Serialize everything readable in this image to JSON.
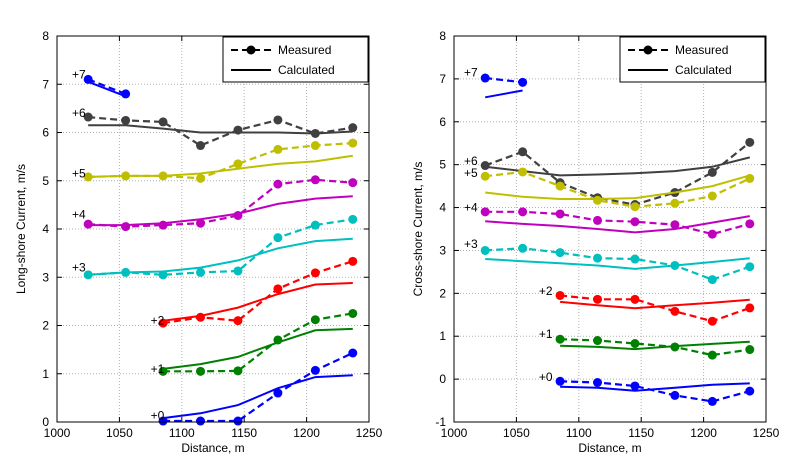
{
  "legend": {
    "measured": "Measured",
    "calculated": "Calculated",
    "placement": "top-right"
  },
  "colors": {
    "+0": "#0000ff",
    "+1": "#008000",
    "+2": "#ff0000",
    "+3": "#00bfbf",
    "+4": "#bf00bf",
    "+5": "#bfbf00",
    "+6": "#404040",
    "+7": "#0000ff"
  },
  "chart_data": [
    {
      "type": "line",
      "xlabel": "Distance, m",
      "ylabel": "Long-shore Current, m/s",
      "xlim": [
        1000,
        1250
      ],
      "ylim": [
        0,
        8
      ],
      "xticks": [
        1000,
        1050,
        1100,
        1150,
        1200,
        1250
      ],
      "yticks": [
        0,
        1,
        2,
        3,
        4,
        5,
        6,
        7,
        8
      ],
      "grid": true,
      "series": [
        {
          "name": "+7",
          "label_at": [
            1012,
            7.2
          ],
          "measured": [
            [
              1025,
              7.1
            ],
            [
              1055,
              6.8
            ]
          ],
          "calculated": [
            [
              1025,
              7.05
            ],
            [
              1055,
              6.75
            ]
          ]
        },
        {
          "name": "+6",
          "label_at": [
            1012,
            6.4
          ],
          "measured": [
            [
              1025,
              6.32
            ],
            [
              1055,
              6.25
            ],
            [
              1085,
              6.22
            ],
            [
              1115,
              5.73
            ],
            [
              1145,
              6.05
            ],
            [
              1177,
              6.26
            ],
            [
              1207,
              5.98
            ],
            [
              1237,
              6.1
            ]
          ],
          "calculated": [
            [
              1025,
              6.15
            ],
            [
              1055,
              6.15
            ],
            [
              1085,
              6.08
            ],
            [
              1115,
              6.0
            ],
            [
              1145,
              6.0
            ],
            [
              1177,
              6.0
            ],
            [
              1207,
              5.98
            ],
            [
              1237,
              6.02
            ]
          ]
        },
        {
          "name": "+5",
          "label_at": [
            1012,
            5.15
          ],
          "measured": [
            [
              1025,
              5.08
            ],
            [
              1055,
              5.1
            ],
            [
              1085,
              5.1
            ],
            [
              1115,
              5.05
            ],
            [
              1145,
              5.35
            ],
            [
              1177,
              5.65
            ],
            [
              1207,
              5.73
            ],
            [
              1237,
              5.78
            ]
          ],
          "calculated": [
            [
              1025,
              5.08
            ],
            [
              1055,
              5.1
            ],
            [
              1085,
              5.1
            ],
            [
              1115,
              5.15
            ],
            [
              1145,
              5.25
            ],
            [
              1177,
              5.35
            ],
            [
              1207,
              5.4
            ],
            [
              1237,
              5.52
            ]
          ]
        },
        {
          "name": "+4",
          "label_at": [
            1012,
            4.3
          ],
          "measured": [
            [
              1025,
              4.1
            ],
            [
              1055,
              4.05
            ],
            [
              1085,
              4.08
            ],
            [
              1115,
              4.12
            ],
            [
              1145,
              4.28
            ],
            [
              1177,
              4.93
            ],
            [
              1207,
              5.02
            ],
            [
              1237,
              4.96
            ]
          ],
          "calculated": [
            [
              1025,
              4.08
            ],
            [
              1055,
              4.08
            ],
            [
              1085,
              4.12
            ],
            [
              1115,
              4.2
            ],
            [
              1145,
              4.32
            ],
            [
              1177,
              4.52
            ],
            [
              1207,
              4.63
            ],
            [
              1237,
              4.68
            ]
          ]
        },
        {
          "name": "+3",
          "label_at": [
            1012,
            3.2
          ],
          "measured": [
            [
              1025,
              3.05
            ],
            [
              1055,
              3.1
            ],
            [
              1085,
              3.05
            ],
            [
              1115,
              3.1
            ],
            [
              1145,
              3.13
            ],
            [
              1177,
              3.82
            ],
            [
              1207,
              4.08
            ],
            [
              1237,
              4.2
            ]
          ],
          "calculated": [
            [
              1025,
              3.05
            ],
            [
              1055,
              3.1
            ],
            [
              1085,
              3.12
            ],
            [
              1115,
              3.2
            ],
            [
              1145,
              3.35
            ],
            [
              1177,
              3.6
            ],
            [
              1207,
              3.75
            ],
            [
              1237,
              3.8
            ]
          ]
        },
        {
          "name": "+2",
          "label_at": [
            1075,
            2.1
          ],
          "measured": [
            [
              1085,
              2.05
            ],
            [
              1115,
              2.17
            ],
            [
              1145,
              2.1
            ],
            [
              1177,
              2.76
            ],
            [
              1207,
              3.09
            ],
            [
              1237,
              3.33
            ]
          ],
          "calculated": [
            [
              1085,
              2.1
            ],
            [
              1115,
              2.2
            ],
            [
              1145,
              2.37
            ],
            [
              1177,
              2.65
            ],
            [
              1207,
              2.85
            ],
            [
              1237,
              2.88
            ]
          ]
        },
        {
          "name": "+1",
          "label_at": [
            1075,
            1.1
          ],
          "measured": [
            [
              1085,
              1.05
            ],
            [
              1115,
              1.05
            ],
            [
              1145,
              1.06
            ],
            [
              1177,
              1.7
            ],
            [
              1207,
              2.12
            ],
            [
              1237,
              2.25
            ]
          ],
          "calculated": [
            [
              1085,
              1.1
            ],
            [
              1115,
              1.2
            ],
            [
              1145,
              1.35
            ],
            [
              1177,
              1.65
            ],
            [
              1207,
              1.9
            ],
            [
              1237,
              1.93
            ]
          ]
        },
        {
          "name": "+0",
          "label_at": [
            1075,
            0.13
          ],
          "measured": [
            [
              1085,
              0.02
            ],
            [
              1115,
              0.02
            ],
            [
              1145,
              0.02
            ],
            [
              1177,
              0.6
            ],
            [
              1207,
              1.07
            ],
            [
              1237,
              1.43
            ]
          ],
          "calculated": [
            [
              1085,
              0.08
            ],
            [
              1115,
              0.18
            ],
            [
              1145,
              0.35
            ],
            [
              1177,
              0.7
            ],
            [
              1207,
              0.93
            ],
            [
              1237,
              0.97
            ]
          ]
        }
      ]
    },
    {
      "type": "line",
      "xlabel": "Distance, m",
      "ylabel": "Cross-shore Current, m/s",
      "xlim": [
        1000,
        1250
      ],
      "ylim": [
        -1,
        8
      ],
      "xticks": [
        1000,
        1050,
        1100,
        1150,
        1200,
        1250
      ],
      "yticks": [
        -1,
        0,
        1,
        2,
        3,
        4,
        5,
        6,
        7,
        8
      ],
      "grid": true,
      "series": [
        {
          "name": "+7",
          "label_at": [
            1008,
            7.15
          ],
          "measured": [
            [
              1025,
              7.02
            ],
            [
              1055,
              6.92
            ]
          ],
          "calculated": [
            [
              1025,
              6.57
            ],
            [
              1055,
              6.73
            ]
          ]
        },
        {
          "name": "+6",
          "label_at": [
            1008,
            5.08
          ],
          "measured": [
            [
              1025,
              4.98
            ],
            [
              1055,
              5.3
            ],
            [
              1085,
              4.58
            ],
            [
              1115,
              4.23
            ],
            [
              1145,
              4.07
            ],
            [
              1177,
              4.35
            ],
            [
              1207,
              4.82
            ],
            [
              1237,
              5.52
            ]
          ],
          "calculated": [
            [
              1025,
              4.95
            ],
            [
              1055,
              4.85
            ],
            [
              1085,
              4.75
            ],
            [
              1115,
              4.77
            ],
            [
              1145,
              4.8
            ],
            [
              1177,
              4.85
            ],
            [
              1207,
              4.95
            ],
            [
              1237,
              5.17
            ]
          ]
        },
        {
          "name": "+5",
          "label_at": [
            1008,
            4.8
          ],
          "measured": [
            [
              1025,
              4.73
            ],
            [
              1055,
              4.83
            ],
            [
              1085,
              4.5
            ],
            [
              1115,
              4.17
            ],
            [
              1145,
              4.02
            ],
            [
              1177,
              4.1
            ],
            [
              1207,
              4.27
            ],
            [
              1237,
              4.68
            ]
          ],
          "calculated": [
            [
              1025,
              4.35
            ],
            [
              1055,
              4.25
            ],
            [
              1085,
              4.2
            ],
            [
              1115,
              4.2
            ],
            [
              1145,
              4.22
            ],
            [
              1177,
              4.35
            ],
            [
              1207,
              4.5
            ],
            [
              1237,
              4.75
            ]
          ]
        },
        {
          "name": "+4",
          "label_at": [
            1008,
            4.0
          ],
          "measured": [
            [
              1025,
              3.9
            ],
            [
              1055,
              3.9
            ],
            [
              1085,
              3.85
            ],
            [
              1115,
              3.7
            ],
            [
              1145,
              3.67
            ],
            [
              1177,
              3.6
            ],
            [
              1207,
              3.38
            ],
            [
              1237,
              3.62
            ]
          ],
          "calculated": [
            [
              1025,
              3.68
            ],
            [
              1055,
              3.62
            ],
            [
              1085,
              3.57
            ],
            [
              1115,
              3.5
            ],
            [
              1145,
              3.42
            ],
            [
              1177,
              3.5
            ],
            [
              1207,
              3.65
            ],
            [
              1237,
              3.8
            ]
          ]
        },
        {
          "name": "+3",
          "label_at": [
            1008,
            3.15
          ],
          "measured": [
            [
              1025,
              3.0
            ],
            [
              1055,
              3.05
            ],
            [
              1085,
              2.95
            ],
            [
              1115,
              2.82
            ],
            [
              1145,
              2.8
            ],
            [
              1177,
              2.65
            ],
            [
              1207,
              2.32
            ],
            [
              1237,
              2.62
            ]
          ],
          "calculated": [
            [
              1025,
              2.8
            ],
            [
              1055,
              2.75
            ],
            [
              1085,
              2.7
            ],
            [
              1115,
              2.65
            ],
            [
              1145,
              2.57
            ],
            [
              1177,
              2.65
            ],
            [
              1207,
              2.73
            ],
            [
              1237,
              2.82
            ]
          ]
        },
        {
          "name": "+2",
          "label_at": [
            1068,
            2.05
          ],
          "measured": [
            [
              1085,
              1.95
            ],
            [
              1115,
              1.86
            ],
            [
              1145,
              1.86
            ],
            [
              1177,
              1.58
            ],
            [
              1207,
              1.35
            ],
            [
              1237,
              1.66
            ]
          ],
          "calculated": [
            [
              1085,
              1.8
            ],
            [
              1115,
              1.72
            ],
            [
              1145,
              1.65
            ],
            [
              1177,
              1.72
            ],
            [
              1207,
              1.78
            ],
            [
              1237,
              1.85
            ]
          ]
        },
        {
          "name": "+1",
          "label_at": [
            1068,
            1.05
          ],
          "measured": [
            [
              1085,
              0.93
            ],
            [
              1115,
              0.9
            ],
            [
              1145,
              0.83
            ],
            [
              1177,
              0.75
            ],
            [
              1207,
              0.56
            ],
            [
              1237,
              0.69
            ]
          ],
          "calculated": [
            [
              1085,
              0.78
            ],
            [
              1115,
              0.75
            ],
            [
              1145,
              0.7
            ],
            [
              1177,
              0.77
            ],
            [
              1207,
              0.82
            ],
            [
              1237,
              0.87
            ]
          ]
        },
        {
          "name": "+0",
          "label_at": [
            1068,
            0.05
          ],
          "measured": [
            [
              1085,
              -0.05
            ],
            [
              1115,
              -0.08
            ],
            [
              1145,
              -0.16
            ],
            [
              1177,
              -0.38
            ],
            [
              1207,
              -0.52
            ],
            [
              1237,
              -0.28
            ]
          ],
          "calculated": [
            [
              1085,
              -0.18
            ],
            [
              1115,
              -0.2
            ],
            [
              1145,
              -0.27
            ],
            [
              1177,
              -0.2
            ],
            [
              1207,
              -0.13
            ],
            [
              1237,
              -0.1
            ]
          ]
        }
      ]
    }
  ]
}
